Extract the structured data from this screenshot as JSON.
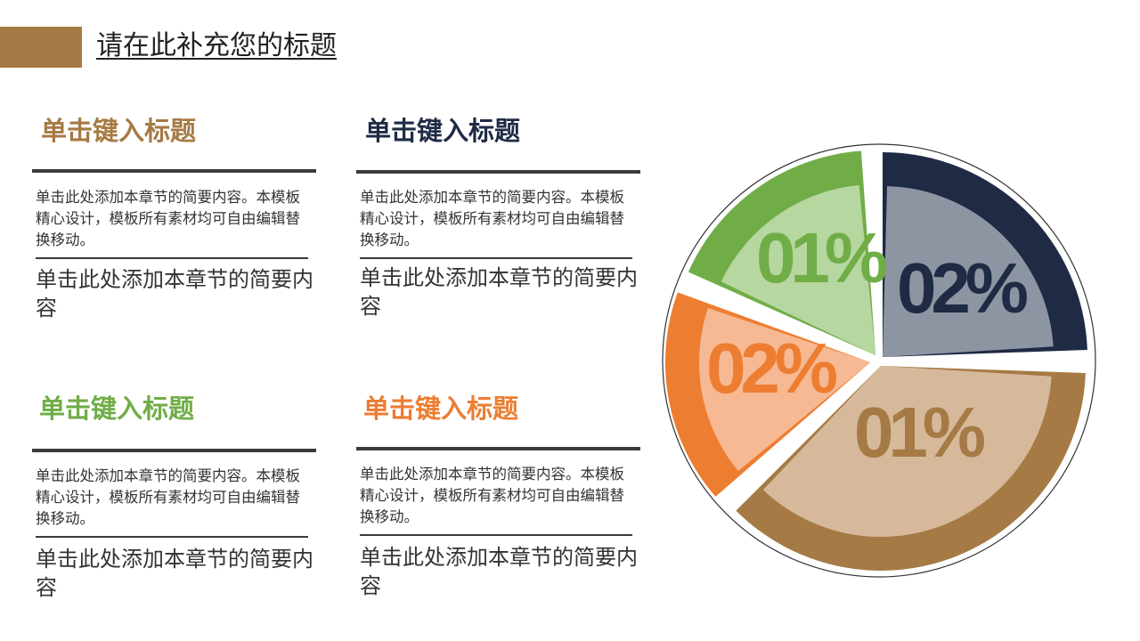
{
  "header": {
    "title": "请在此补充您的标题",
    "accent_color": "#a67a45"
  },
  "cards": [
    {
      "heading": "单击键入标题",
      "heading_color": "#a67a45",
      "description": "单击此处添加本章节的简要内容。本模板精心设计，模板所有素材均可自由编辑替换移动。",
      "subtext": "单击此处添加本章节的简要内容"
    },
    {
      "heading": "单击键入标题",
      "heading_color": "#1f2b45",
      "description": "单击此处添加本章节的简要内容。本模板精心设计，模板所有素材均可自由编辑替换移动。",
      "subtext": "单击此处添加本章节的简要内容"
    },
    {
      "heading": "单击键入标题",
      "heading_color": "#70ad47",
      "description": "单击此处添加本章节的简要内容。本模板精心设计，模板所有素材均可自由编辑替换移动。",
      "subtext": "单击此处添加本章节的简要内容"
    },
    {
      "heading": "单击键入标题",
      "heading_color": "#ed7d31",
      "description": "单击此处添加本章节的简要内容。本模板精心设计，模板所有素材均可自由编辑替换移动。",
      "subtext": "单击此处添加本章节的简要内容"
    }
  ],
  "chart_data": {
    "type": "pie",
    "slices": [
      {
        "label": "02%",
        "color": "#1f2b45",
        "inner_color": "#8e95a2",
        "text_color": "#1f2b45"
      },
      {
        "label": "01%",
        "color": "#a67a45",
        "inner_color": "#d5b99a",
        "text_color": "#a67a45"
      },
      {
        "label": "02%",
        "color": "#ed7d31",
        "inner_color": "#f6b993",
        "text_color": "#ed7d31"
      },
      {
        "label": "01%",
        "color": "#70ad47",
        "inner_color": "#b6d7a0",
        "text_color": "#70ad47"
      }
    ]
  }
}
